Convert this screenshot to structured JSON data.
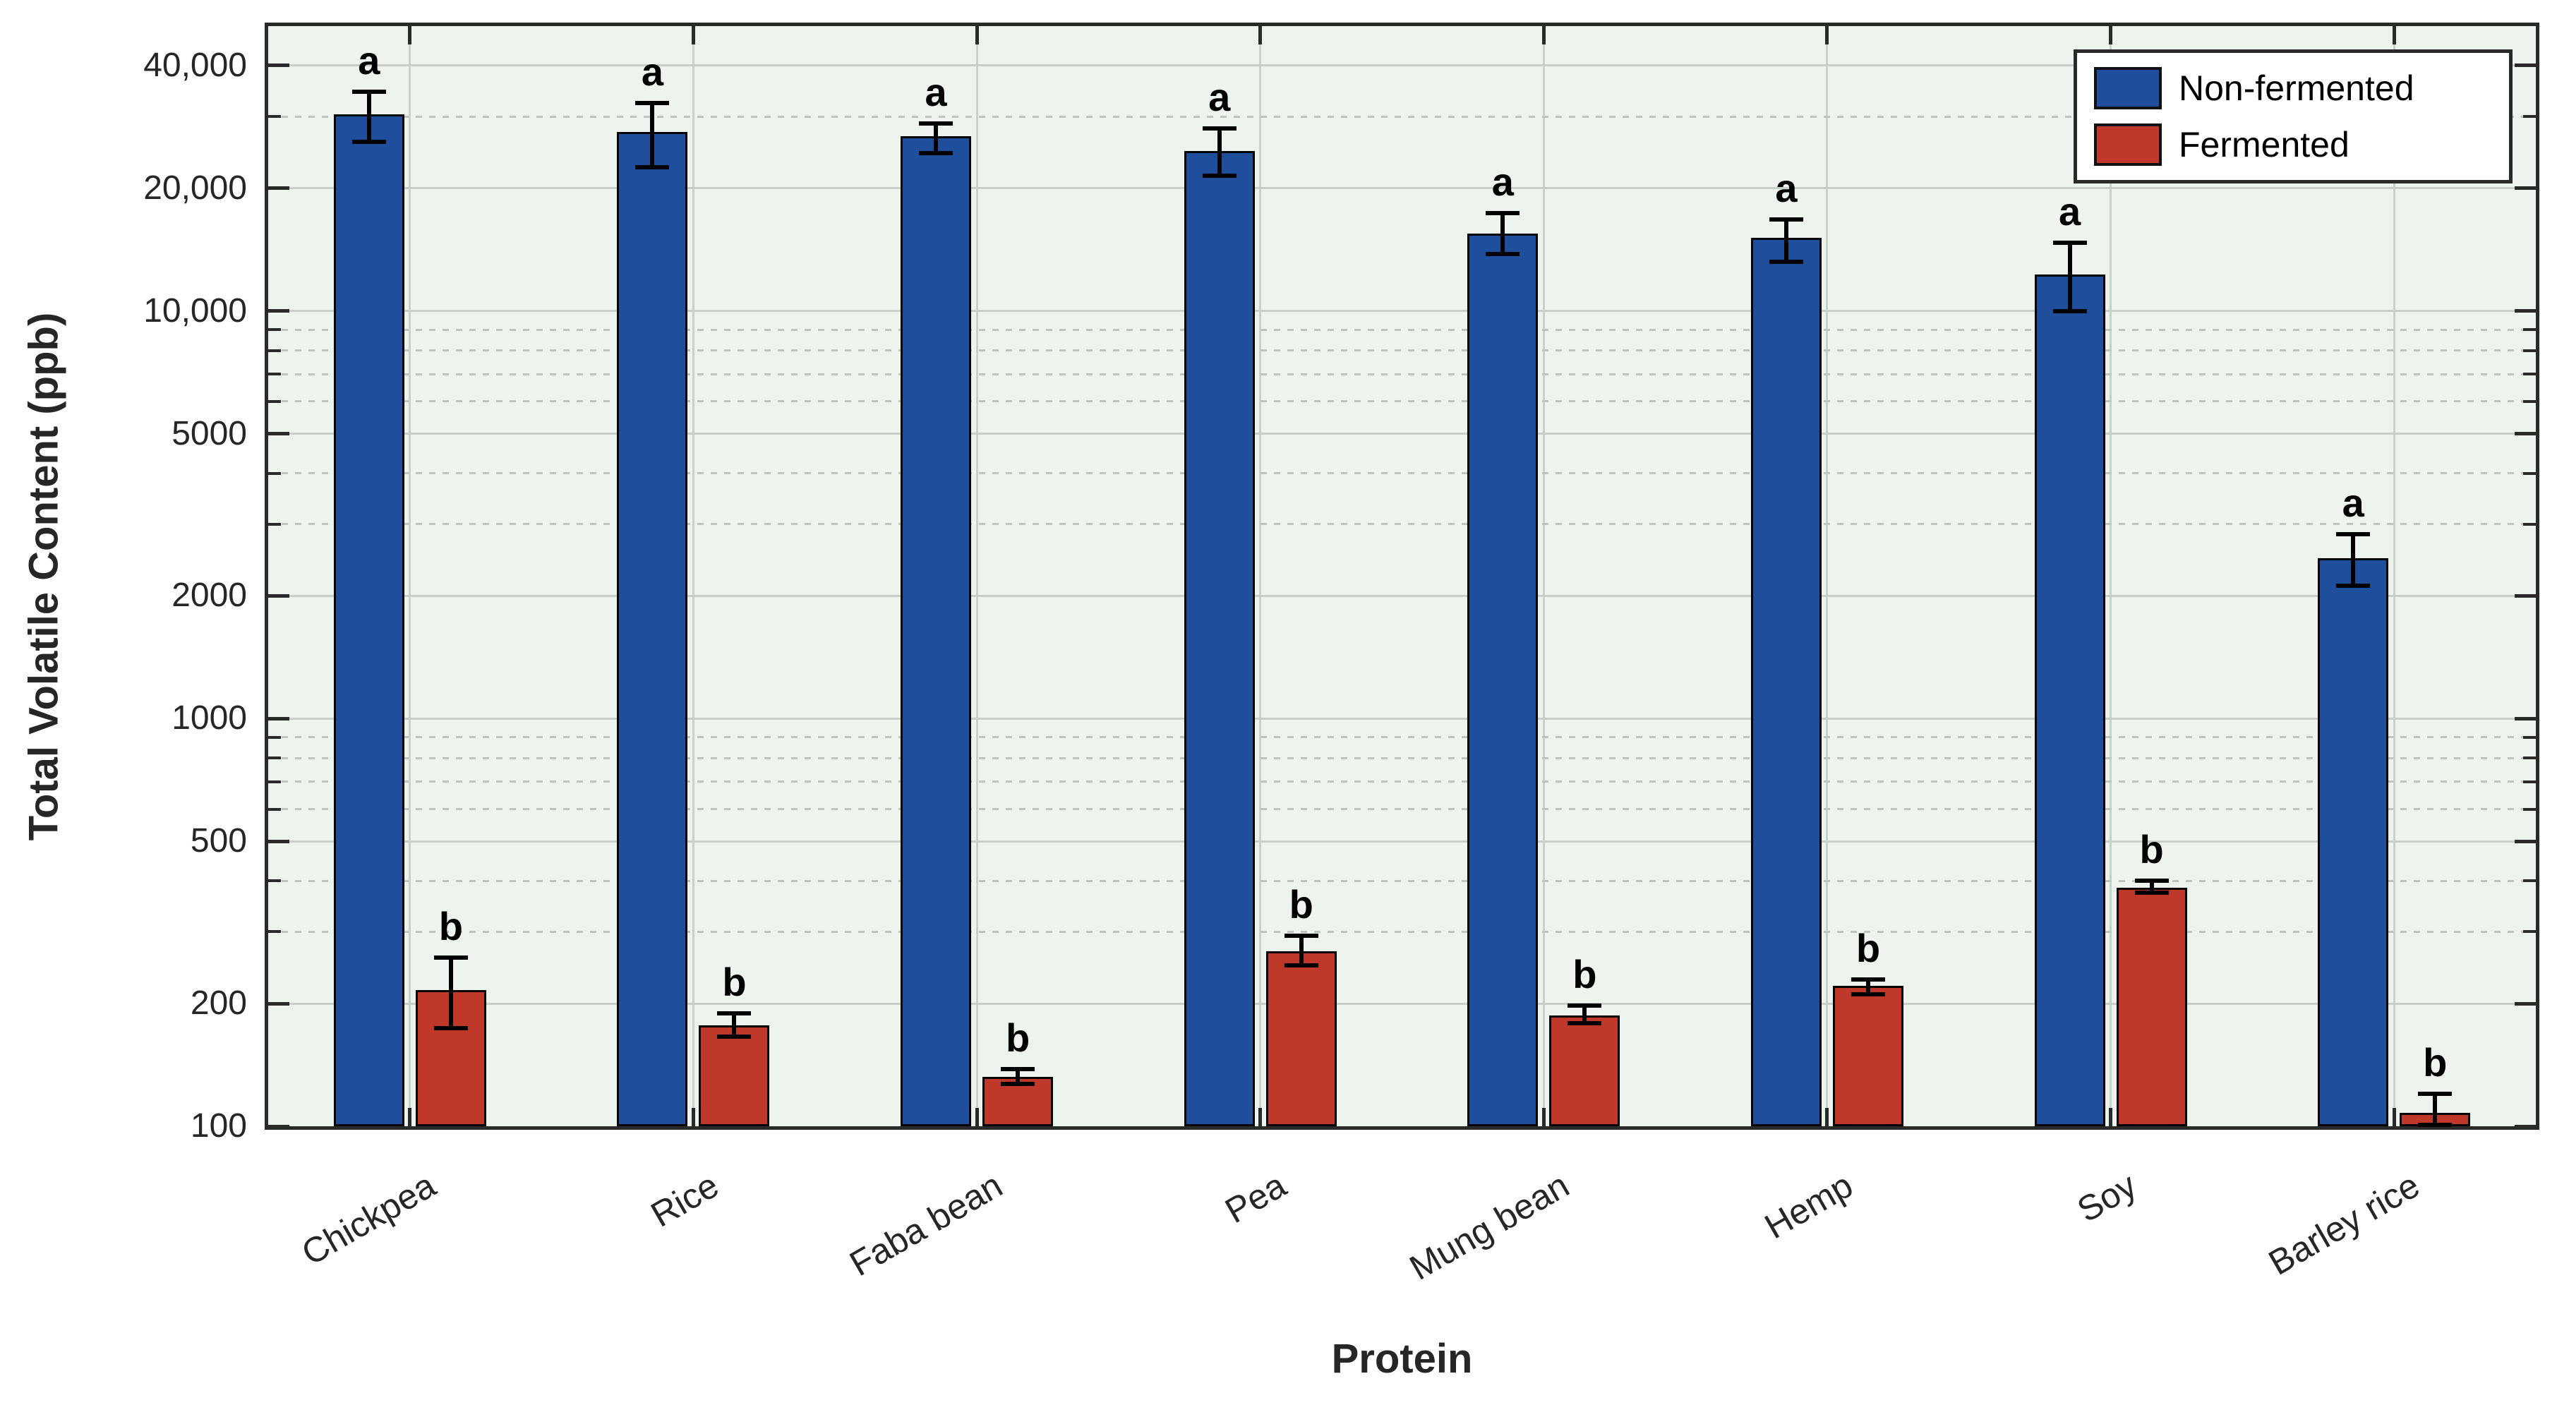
{
  "chart_data": {
    "type": "bar",
    "y_scale": "log",
    "title": "",
    "xlabel": "Protein",
    "ylabel": "Total Volatile Content (ppb)",
    "ylim": [
      100,
      50000
    ],
    "grid": true,
    "legend_position": "top-right",
    "categories": [
      "Chickpea",
      "Rice",
      "Faba bean",
      "Pea",
      "Mung bean",
      "Hemp",
      "Soy",
      "Barley rice"
    ],
    "series": [
      {
        "name": "Non-fermented",
        "color": "#1f4e9c",
        "sig_letter": "a",
        "values": [
          30400,
          27500,
          26800,
          24700,
          15500,
          15100,
          12300,
          2480
        ],
        "err_low": [
          26000,
          22500,
          24400,
          21500,
          13800,
          13200,
          10000,
          2120
        ],
        "err_high": [
          34500,
          32400,
          28900,
          28100,
          17400,
          16800,
          14700,
          2840
        ]
      },
      {
        "name": "Fermented",
        "color": "#bf382a",
        "sig_letter": "b",
        "values": [
          216,
          177,
          132,
          269,
          187,
          221,
          385,
          108
        ],
        "err_low": [
          174,
          166,
          127,
          248,
          179,
          211,
          374,
          101
        ],
        "err_high": [
          259,
          189,
          138,
          293,
          198,
          229,
          400,
          120
        ]
      }
    ],
    "y_ticks": [
      {
        "value": 40000,
        "label": "40,000"
      },
      {
        "value": 20000,
        "label": "20,000"
      },
      {
        "value": 10000,
        "label": "10,000"
      },
      {
        "value": 5000,
        "label": "5000"
      },
      {
        "value": 2000,
        "label": "2000"
      },
      {
        "value": 1000,
        "label": "1000"
      },
      {
        "value": 500,
        "label": "500"
      },
      {
        "value": 200,
        "label": "200"
      },
      {
        "value": 100,
        "label": "100"
      }
    ],
    "y_minor_gridlines": [
      30000,
      9000,
      8000,
      7000,
      6000,
      4000,
      3000,
      900,
      800,
      700,
      600,
      400,
      300
    ],
    "colors": {
      "plot_bg": "#edf4ee",
      "grid_major": "#c7d0c8",
      "grid_minor": "#bdc5be",
      "spine": "#2a2a2a",
      "bar_edge": "#000000",
      "text": "#262626",
      "legend_bg": "#ffffff"
    }
  }
}
